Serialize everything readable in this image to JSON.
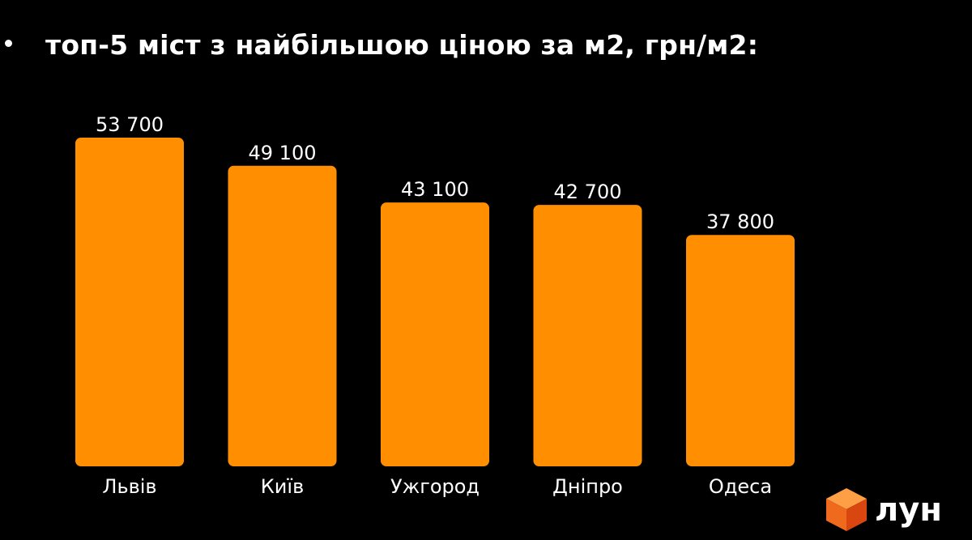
{
  "slide": {
    "title": "топ-5 міст з найбільшою ціною за м2, грн/м2:"
  },
  "logo": {
    "text": "лун",
    "icon": "orange-cube-icon",
    "colors": {
      "top": "#FF9F45",
      "left": "#F06A1E",
      "right": "#D9460F"
    }
  },
  "colors": {
    "background": "#000000",
    "bar": "#FF8F00",
    "text": "#FFFFFF"
  },
  "chart_data": {
    "type": "bar",
    "title": "топ-5 міст з найбільшою ціною за м2, грн/м2:",
    "categories": [
      "Львів",
      "Київ",
      "Ужгород",
      "Дніпро",
      "Одеса"
    ],
    "values": [
      53700,
      49100,
      43100,
      42700,
      37800
    ],
    "value_labels": [
      "53 700",
      "49 100",
      "43 100",
      "42 700",
      "37 800"
    ],
    "xlabel": "",
    "ylabel": "",
    "ylim": [
      0,
      53700
    ],
    "grid": false,
    "legend": "none"
  }
}
